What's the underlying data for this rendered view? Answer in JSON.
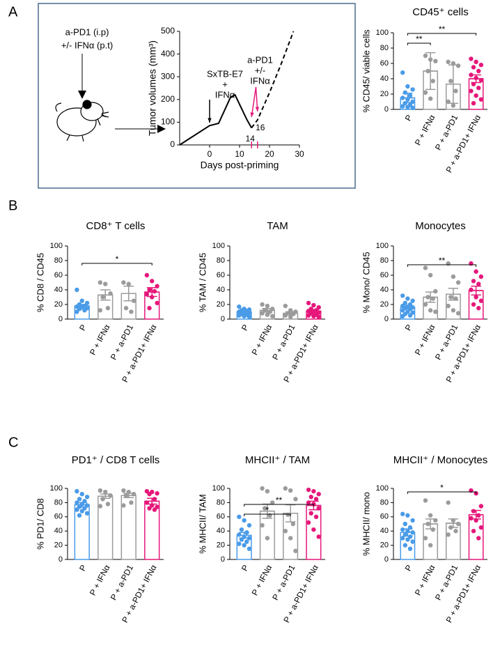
{
  "panels": [
    "A",
    "B",
    "C"
  ],
  "schematic": {
    "lines": [
      "a-PD1 (i.p)",
      "+/- IFNα (p.t)"
    ]
  },
  "chart_data": [
    {
      "type": "line",
      "ylabel": "Tumor volumes (mm³)",
      "xlabel": "Days post-priming",
      "xlim": [
        -10,
        30
      ],
      "xticks": [
        0,
        10,
        20,
        30
      ],
      "ylim": [
        0,
        500
      ],
      "yticks": [
        0,
        100,
        200,
        300,
        400,
        500
      ],
      "series": [
        {
          "color": "#000000",
          "x": [
            -10,
            0,
            3,
            7,
            8.5,
            12.5,
            14
          ],
          "values": [
            0,
            85,
            95,
            210,
            220,
            110,
            75
          ]
        },
        {
          "color": "#000000",
          "dashed": true,
          "x": [
            14,
            16,
            20,
            24,
            28
          ],
          "values": [
            75,
            110,
            230,
            360,
            500
          ]
        }
      ],
      "annotations": [
        {
          "text": [
            "SxTB-E7",
            "+",
            "IFNα"
          ],
          "x": [
            0
          ],
          "color": "#000000"
        },
        {
          "text": [
            "a-PD1",
            "+/-",
            "IFNα"
          ],
          "x": [
            14,
            16
          ],
          "color": "#e6177a"
        }
      ],
      "highlight_ticks": [
        14,
        16
      ],
      "highlight_color": "#e6177a"
    },
    {
      "type": "bar",
      "title": "CD45⁺ cells",
      "ylabel": "% CD45/ viable cells",
      "categories": [
        "P",
        "P + IFNα",
        "P + a-PD1",
        "P + a-PD1+ IFNα"
      ],
      "colors": [
        "#4a9be8",
        "#9b9b9b",
        "#9b9b9b",
        "#e6177a"
      ],
      "values": [
        15,
        50,
        33,
        40
      ],
      "errors": [
        6,
        24,
        25,
        5
      ],
      "points": [
        [
          48,
          30,
          26,
          22,
          18,
          15,
          13,
          10,
          8,
          6,
          4,
          3,
          2
        ],
        [
          70,
          65,
          63,
          50,
          37,
          22,
          14
        ],
        [
          62,
          60,
          57,
          37,
          24,
          10,
          5
        ],
        [
          66,
          62,
          58,
          55,
          50,
          45,
          41,
          38,
          33,
          28,
          24,
          18,
          13,
          8
        ]
      ],
      "ylim": [
        0,
        100
      ],
      "yticks": [
        0,
        20,
        40,
        60,
        80,
        100
      ],
      "brackets": [
        {
          "from": 0,
          "to": 1,
          "label": "**"
        },
        {
          "from": 0,
          "to": 3,
          "label": "**"
        }
      ]
    },
    {
      "type": "bar",
      "title": "CD8⁺ T cells",
      "ylabel": "% CD8 / CD45",
      "categories": [
        "P",
        "P + IFNα",
        "P + a-PD1",
        "P + a-PD1+ IFNα"
      ],
      "colors": [
        "#4a9be8",
        "#9b9b9b",
        "#9b9b9b",
        "#e6177a"
      ],
      "values": [
        18,
        33,
        35,
        37
      ],
      "errors": [
        2,
        7,
        10,
        6
      ],
      "points": [
        [
          40,
          25,
          22,
          20,
          18,
          17,
          16,
          15,
          14,
          12,
          10
        ],
        [
          50,
          48,
          35,
          30,
          15,
          12
        ],
        [
          50,
          48,
          25,
          15,
          10
        ],
        [
          60,
          52,
          45,
          40,
          38,
          34,
          30,
          22,
          15
        ]
      ],
      "ylim": [
        0,
        100
      ],
      "yticks": [
        0,
        20,
        40,
        60,
        80,
        100
      ],
      "brackets": [
        {
          "from": 0,
          "to": 3,
          "label": "*"
        }
      ]
    },
    {
      "type": "bar",
      "title": "TAM",
      "ylabel": "% TAM / CD45",
      "categories": [
        "P",
        "P + IFNα",
        "P + a-PD1",
        "P + a-PD1+ IFNα"
      ],
      "colors": [
        "#4a9be8",
        "#9b9b9b",
        "#9b9b9b",
        "#e6177a"
      ],
      "values": [
        10,
        12,
        8,
        11
      ],
      "errors": [
        1.5,
        2.5,
        2,
        2
      ],
      "points": [
        [
          17,
          14,
          13,
          12,
          11,
          10,
          9,
          8,
          7,
          6,
          5,
          4,
          3
        ],
        [
          20,
          18,
          14,
          12,
          10,
          8,
          6,
          4
        ],
        [
          18,
          12,
          10,
          8,
          7,
          5,
          3
        ],
        [
          22,
          19,
          16,
          14,
          12,
          11,
          10,
          9,
          8,
          6,
          5,
          4,
          3
        ]
      ],
      "ylim": [
        0,
        100
      ],
      "yticks": [
        0,
        20,
        40,
        60,
        80,
        100
      ]
    },
    {
      "type": "bar",
      "title": "Monocytes",
      "ylabel": "% Mono/ CD45",
      "categories": [
        "P",
        "P + IFNα",
        "P + a-PD1",
        "P + a-PD1+ IFNα"
      ],
      "colors": [
        "#4a9be8",
        "#9b9b9b",
        "#9b9b9b",
        "#e6177a"
      ],
      "values": [
        16,
        30,
        34,
        39
      ],
      "errors": [
        2,
        7,
        8,
        6
      ],
      "points": [
        [
          32,
          28,
          25,
          22,
          20,
          18,
          17,
          16,
          15,
          14,
          12,
          10,
          9,
          7,
          5,
          4
        ],
        [
          70,
          60,
          38,
          30,
          28,
          20,
          12,
          10
        ],
        [
          76,
          58,
          50,
          30,
          28,
          18,
          12,
          8
        ],
        [
          76,
          65,
          58,
          52,
          48,
          40,
          30,
          25,
          20,
          15
        ]
      ],
      "ylim": [
        0,
        100
      ],
      "yticks": [
        0,
        20,
        40,
        60,
        80,
        100
      ],
      "brackets": [
        {
          "from": 0,
          "to": 3,
          "label": "**"
        }
      ]
    },
    {
      "type": "bar",
      "title": "PD1⁺ / CD8 T cells",
      "ylabel": "% PD1/ CD8",
      "categories": [
        "P",
        "P + IFNα",
        "P + a-PD1",
        "P + a-PD1+ IFNα"
      ],
      "colors": [
        "#4a9be8",
        "#9b9b9b",
        "#9b9b9b",
        "#e6177a"
      ],
      "values": [
        77,
        89,
        90,
        82
      ],
      "errors": [
        3,
        3,
        3,
        4
      ],
      "points": [
        [
          96,
          92,
          88,
          85,
          82,
          80,
          78,
          76,
          74,
          72,
          70,
          68,
          65,
          62
        ],
        [
          97,
          95,
          90,
          85,
          78,
          75
        ],
        [
          97,
          95,
          92,
          90,
          80,
          76
        ],
        [
          96,
          95,
          93,
          92,
          85,
          80,
          76,
          74,
          72,
          70
        ]
      ],
      "ylim": [
        0,
        100
      ],
      "yticks": [
        0,
        20,
        40,
        60,
        80,
        100
      ]
    },
    {
      "type": "bar",
      "title": "MHCII⁺ / TAM",
      "ylabel": "% MHCII/ TAM",
      "categories": [
        "P",
        "P + IFNα",
        "P + a-PD1",
        "P + a-PD1+ IFNα"
      ],
      "colors": [
        "#4a9be8",
        "#9b9b9b",
        "#9b9b9b",
        "#e6177a"
      ],
      "values": [
        34,
        68,
        65,
        76
      ],
      "errors": [
        4,
        10,
        12,
        6
      ],
      "points": [
        [
          60,
          55,
          48,
          42,
          38,
          35,
          32,
          30,
          28,
          25,
          22,
          20,
          15
        ],
        [
          100,
          96,
          80,
          72,
          62,
          48,
          30
        ],
        [
          100,
          97,
          85,
          63,
          50,
          40,
          30,
          12
        ],
        [
          98,
          96,
          92,
          88,
          85,
          80,
          78,
          72,
          65,
          60,
          52,
          42,
          32
        ]
      ],
      "ylim": [
        0,
        100
      ],
      "yticks": [
        0,
        20,
        40,
        60,
        80,
        100
      ],
      "brackets": [
        {
          "from": 0,
          "to": 2,
          "label": "*"
        },
        {
          "from": 0,
          "to": 3,
          "label": "**"
        }
      ]
    },
    {
      "type": "bar",
      "title": "MHCII⁺ / Monocytes",
      "ylabel": "% MHCII/ mono",
      "categories": [
        "P",
        "P + IFNα",
        "P + a-PD1",
        "P + a-PD1+ IFNα"
      ],
      "colors": [
        "#4a9be8",
        "#9b9b9b",
        "#9b9b9b",
        "#e6177a"
      ],
      "values": [
        38,
        50,
        51,
        63
      ],
      "errors": [
        5,
        7,
        6,
        6
      ],
      "points": [
        [
          64,
          62,
          55,
          50,
          45,
          42,
          40,
          38,
          35,
          32,
          30,
          28,
          25,
          20,
          15
        ],
        [
          83,
          62,
          55,
          50,
          42,
          30,
          20
        ],
        [
          80,
          55,
          50,
          45,
          40,
          35
        ],
        [
          97,
          93,
          75,
          68,
          62,
          58,
          55,
          45,
          40,
          30
        ]
      ],
      "ylim": [
        0,
        100
      ],
      "yticks": [
        0,
        20,
        40,
        60,
        80,
        100
      ],
      "brackets": [
        {
          "from": 0,
          "to": 3,
          "label": "*"
        }
      ]
    }
  ]
}
